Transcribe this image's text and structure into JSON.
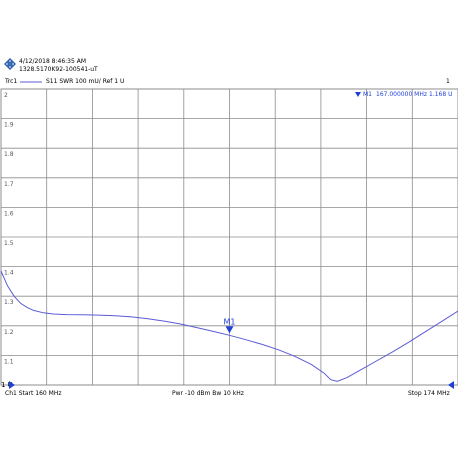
{
  "header": {
    "datetime": "4/12/2018 8:46:35 AM",
    "instrument_id": "1328.5170K92-100541-uT"
  },
  "trace_line": {
    "trace": "Trc1",
    "definition": "S11  SWR  100 mU/ Ref 1 U",
    "channel_number": "1"
  },
  "footer": {
    "start": "Ch1  Start  160 MHz",
    "power_bw": "Pwr  -10 dBm  Bw  10 kHz",
    "stop": "Stop  174 MHz"
  },
  "marker_readout": {
    "name": "M1",
    "frequency": "167.000000  MHz",
    "value": "1.168  U"
  },
  "colors": {
    "trace": "#5b5bd6",
    "marker": "#1f3fd6",
    "grid": "#8c8c8c",
    "logo": "#2b5fae"
  },
  "chart_data": {
    "type": "line",
    "xlabel": "",
    "ylabel": "",
    "x_unit": "MHz",
    "y_unit": "U",
    "xlim": [
      160,
      174
    ],
    "ylim": [
      1.0,
      2.0
    ],
    "x_divisions": 10,
    "y_divisions": 10,
    "grid": true,
    "y_tick_labels": [
      "2",
      "1.9",
      "1.8",
      "1.7",
      "1.6",
      "1.5",
      "1.4",
      "1.3",
      "1.2",
      "1.1",
      "1 U"
    ],
    "y_tick_values": [
      2.0,
      1.9,
      1.8,
      1.7,
      1.6,
      1.5,
      1.4,
      1.3,
      1.2,
      1.1,
      1.0
    ],
    "ref_value": 1.0,
    "series": [
      {
        "x": [
          160.0,
          160.2,
          160.4,
          160.6,
          160.8,
          161.0,
          161.3,
          161.6,
          162.0,
          162.5,
          163.0,
          163.5,
          164.0,
          164.5,
          165.0,
          165.5,
          166.0,
          166.5,
          167.0,
          167.5,
          168.0,
          168.5,
          169.0,
          169.5,
          169.9,
          170.1,
          170.3,
          170.6,
          171.0,
          171.5,
          172.0,
          172.5,
          173.0,
          173.5,
          174.0
        ],
        "y": [
          1.385,
          1.335,
          1.3,
          1.276,
          1.262,
          1.252,
          1.244,
          1.24,
          1.238,
          1.237,
          1.236,
          1.234,
          1.23,
          1.224,
          1.216,
          1.206,
          1.194,
          1.181,
          1.168,
          1.153,
          1.137,
          1.119,
          1.097,
          1.07,
          1.04,
          1.018,
          1.012,
          1.025,
          1.05,
          1.081,
          1.112,
          1.145,
          1.18,
          1.215,
          1.25
        ]
      }
    ],
    "markers": [
      {
        "label": "M1",
        "x": 167.0,
        "y": 1.168
      }
    ]
  }
}
